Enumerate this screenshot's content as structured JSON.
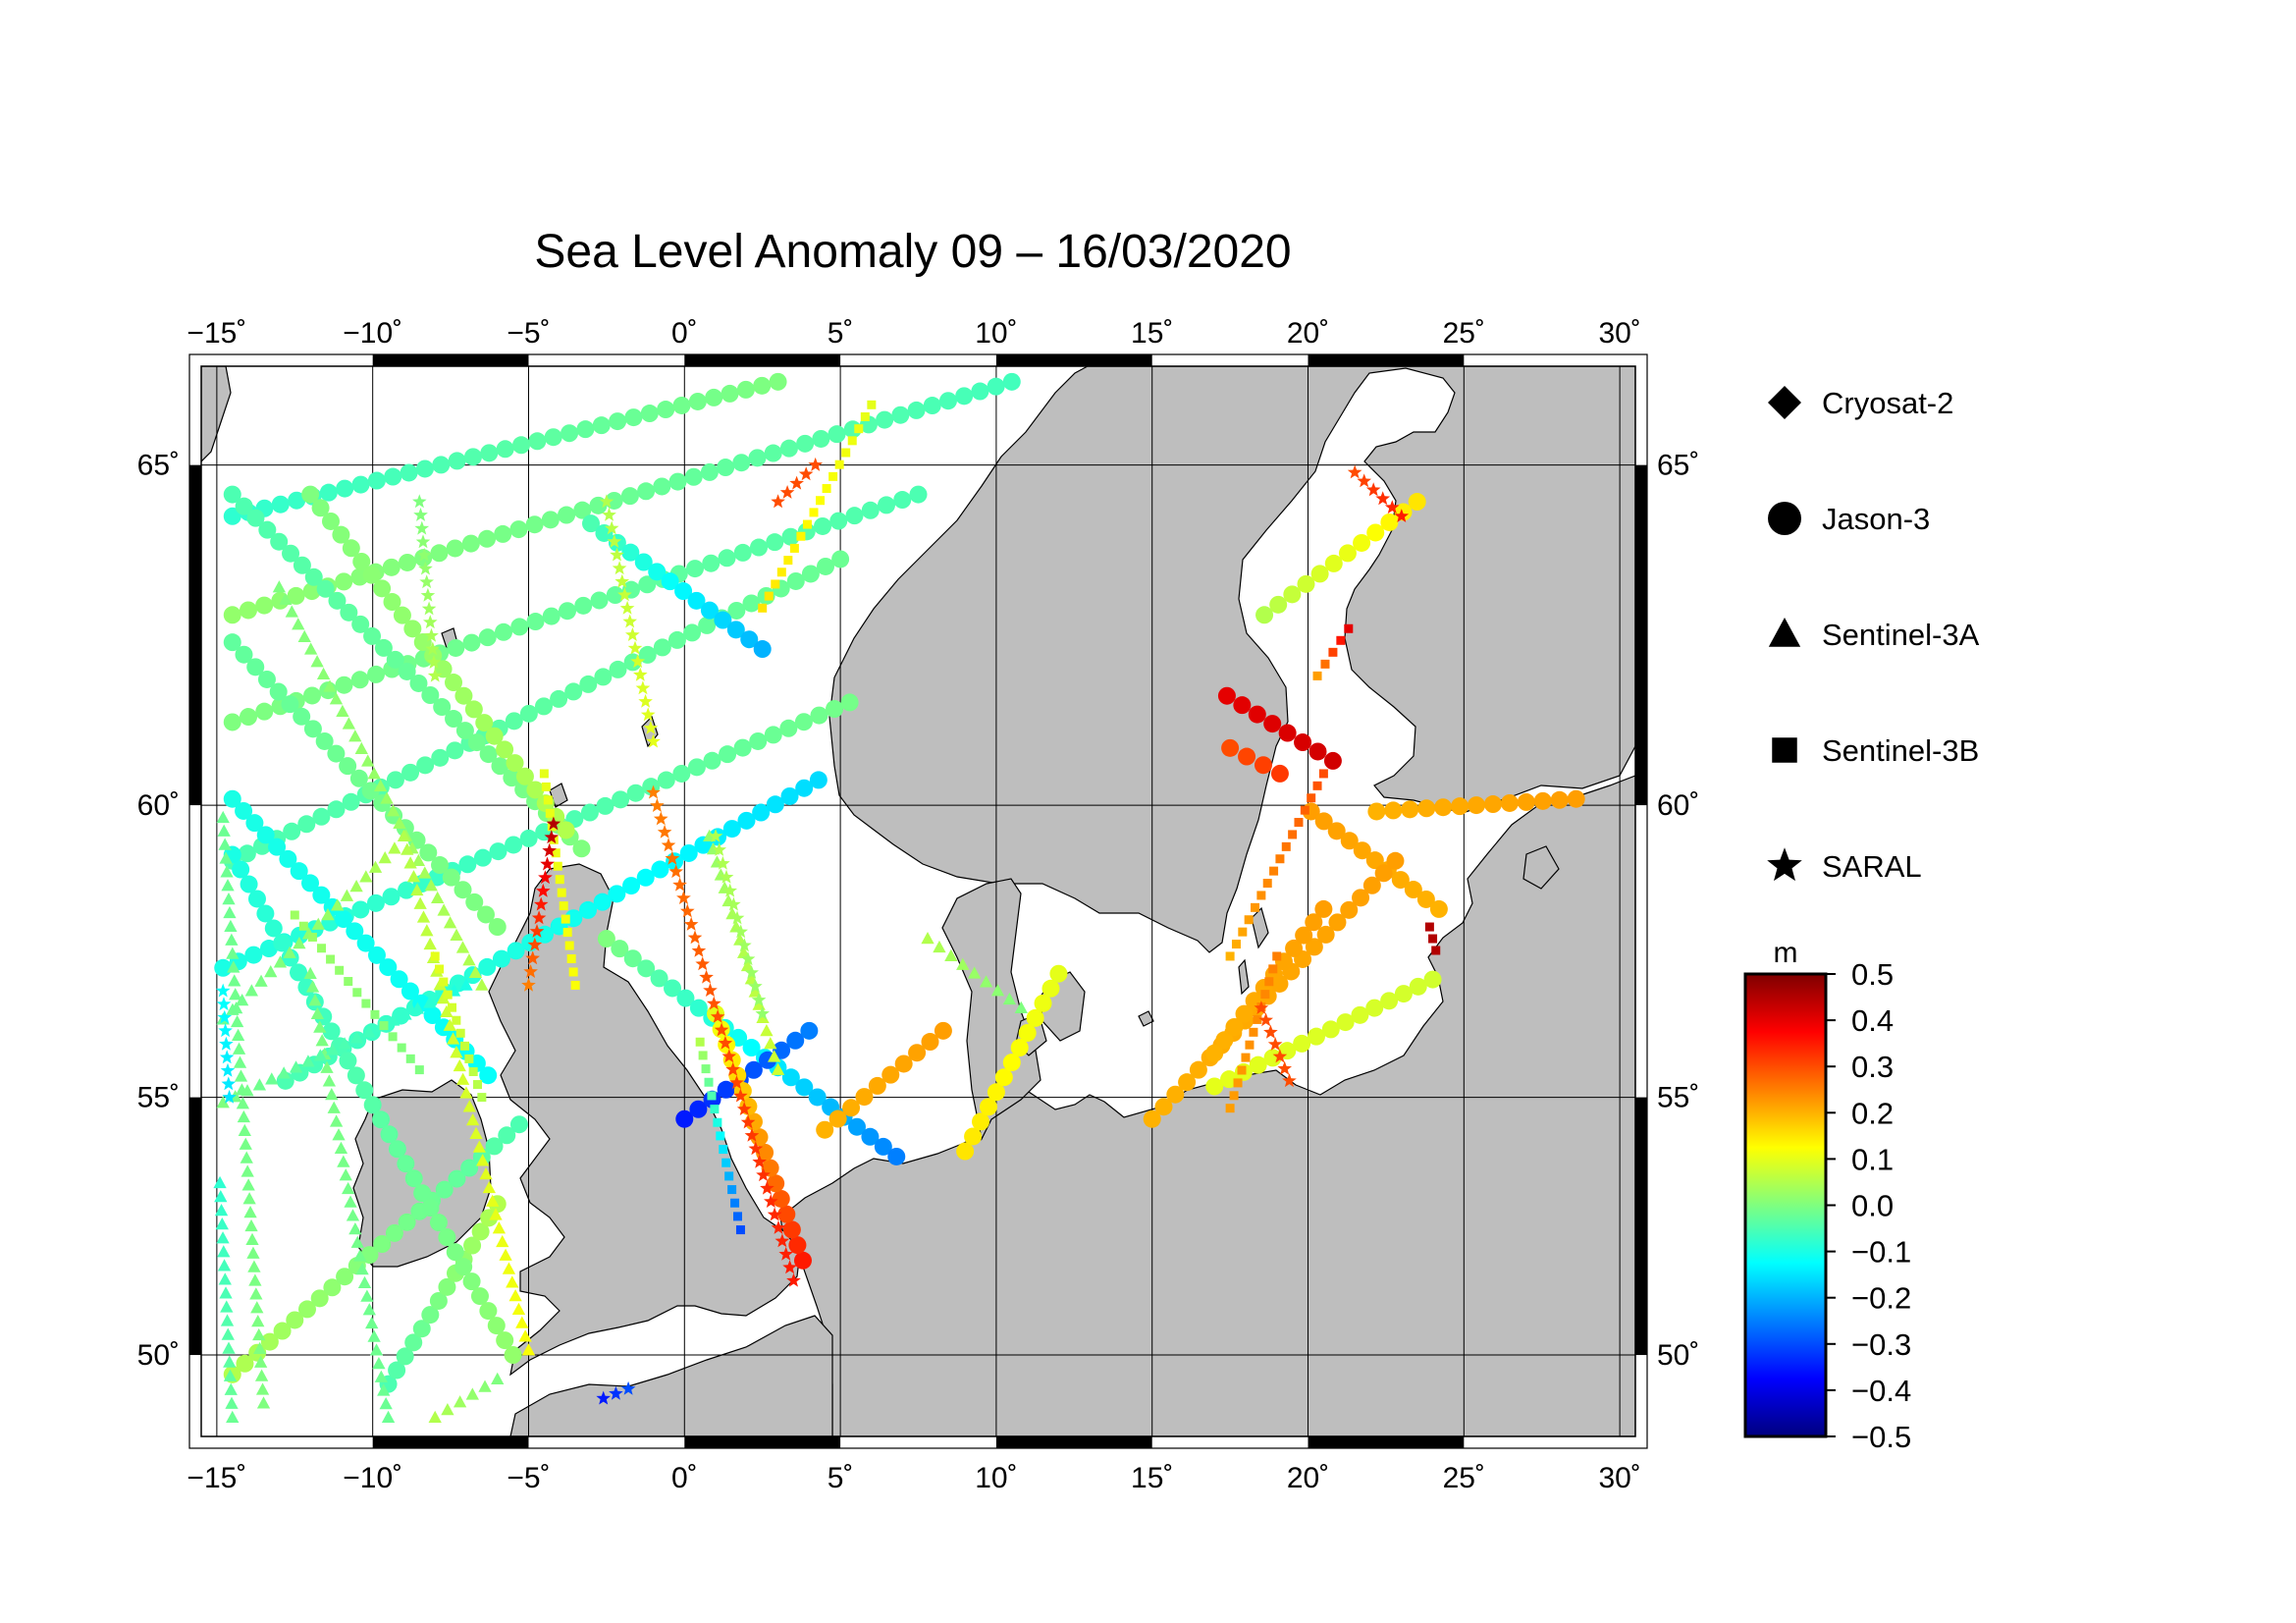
{
  "title": "Sea Level Anomaly 09 – 16/03/2020",
  "colors": {
    "land": "#bebebe",
    "sea": "#ffffff",
    "coast": "#000000",
    "grid": "#000000"
  },
  "map": {
    "lon_range": [
      -15.5,
      30.5
    ],
    "lat_range": [
      48.3,
      66.3
    ],
    "lon_ticks": [
      -15,
      -10,
      -5,
      0,
      5,
      10,
      15,
      20,
      25,
      30
    ],
    "lon_tick_labels": [
      "−15˚",
      "−10˚",
      "−5˚",
      "0˚",
      "5˚",
      "10˚",
      "15˚",
      "20˚",
      "25˚",
      "30˚"
    ],
    "lat_ticks": [
      50,
      55,
      60,
      65
    ],
    "lat_tick_labels": [
      "50˚",
      "55˚",
      "60˚",
      "65˚"
    ],
    "projection": "mercator",
    "grid": true
  },
  "legend": {
    "items": [
      {
        "label": "Cryosat-2",
        "symbol": "diamond-icon"
      },
      {
        "label": "Jason-3",
        "symbol": "circle-icon"
      },
      {
        "label": "Sentinel-3A",
        "symbol": "triangle-icon"
      },
      {
        "label": "Sentinel-3B",
        "symbol": "square-icon"
      },
      {
        "label": "SARAL",
        "symbol": "star-icon"
      }
    ]
  },
  "colorbar": {
    "unit": "m",
    "min": -0.5,
    "max": 0.5,
    "ticks": [
      0.5,
      0.4,
      0.3,
      0.2,
      0.1,
      0.0,
      -0.1,
      -0.2,
      -0.3,
      -0.4,
      -0.5
    ],
    "tick_labels": [
      "0.5",
      "0.4",
      "0.3",
      "0.2",
      "0.1",
      "0.0",
      "−0.1",
      "−0.2",
      "−0.3",
      "−0.4",
      "−0.5"
    ],
    "colormap": [
      "#00007f",
      "#0000ff",
      "#007fff",
      "#00ffff",
      "#7fff7f",
      "#ffff00",
      "#ff7f00",
      "#ff0000",
      "#7f0000"
    ]
  },
  "chart_data": {
    "type": "scatter",
    "title": "Sea Level Anomaly 09 – 16/03/2020",
    "xlabel": "",
    "ylabel": "",
    "xlim": [
      -15.5,
      30.5
    ],
    "ylim": [
      48.3,
      66.3
    ],
    "value_unit": "m",
    "value_range": [
      -0.5,
      0.5
    ],
    "tracks": [
      {
        "satellite": "Jason-3",
        "start": [
          -14.5,
          64.3
        ],
        "end": [
          3.0,
          66.1
        ],
        "values": [
          -0.08,
          0.0
        ]
      },
      {
        "satellite": "Jason-3",
        "start": [
          -14.5,
          62.9
        ],
        "end": [
          10.5,
          66.1
        ],
        "values": [
          0.02,
          -0.06
        ]
      },
      {
        "satellite": "Jason-3",
        "start": [
          -14.5,
          61.3
        ],
        "end": [
          7.5,
          64.6
        ],
        "values": [
          0.0,
          -0.05
        ]
      },
      {
        "satellite": "Jason-3",
        "start": [
          -14.5,
          59.1
        ],
        "end": [
          5.0,
          63.7
        ],
        "values": [
          -0.05,
          -0.02
        ]
      },
      {
        "satellite": "Jason-3",
        "start": [
          -14.8,
          57.3
        ],
        "end": [
          5.3,
          61.6
        ],
        "values": [
          -0.1,
          -0.01
        ]
      },
      {
        "satellite": "Jason-3",
        "start": [
          -12.8,
          55.3
        ],
        "end": [
          4.3,
          60.4
        ],
        "values": [
          -0.05,
          -0.16
        ]
      },
      {
        "satellite": "Jason-3",
        "start": [
          -9.5,
          49.4
        ],
        "end": [
          -6.0,
          53.0
        ],
        "values": [
          -0.05,
          0.05
        ]
      },
      {
        "satellite": "Jason-3",
        "start": [
          -14.5,
          64.6
        ],
        "end": [
          -3.3,
          59.3
        ],
        "values": [
          -0.05,
          0.0
        ]
      },
      {
        "satellite": "Jason-3",
        "start": [
          -14.5,
          62.5
        ],
        "end": [
          -6.0,
          58.0
        ],
        "values": [
          -0.03,
          0.0
        ]
      },
      {
        "satellite": "Jason-3",
        "start": [
          -14.5,
          60.1
        ],
        "end": [
          -6.3,
          55.4
        ],
        "values": [
          -0.1,
          -0.12
        ]
      },
      {
        "satellite": "Jason-3",
        "start": [
          -14.5,
          49.6
        ],
        "end": [
          -5.3,
          54.5
        ],
        "values": [
          0.05,
          -0.05
        ]
      },
      {
        "satellite": "Jason-3",
        "start": [
          -14.5,
          59.2
        ],
        "end": [
          -5.5,
          50.0
        ],
        "values": [
          -0.1,
          0.02
        ]
      },
      {
        "satellite": "Jason-3",
        "start": [
          -12.0,
          64.6
        ],
        "end": [
          -3.8,
          59.6
        ],
        "values": [
          0.0,
          0.05
        ]
      },
      {
        "satellite": "Jason-3",
        "start": [
          -3.0,
          64.2
        ],
        "end": [
          2.5,
          62.4
        ],
        "values": [
          -0.05,
          -0.2
        ]
      },
      {
        "satellite": "Jason-3",
        "start": [
          -2.5,
          57.8
        ],
        "end": [
          6.8,
          53.9
        ],
        "values": [
          0.0,
          -0.25
        ]
      },
      {
        "satellite": "Jason-3",
        "start": [
          0.0,
          54.6
        ],
        "end": [
          4.0,
          56.2
        ],
        "values": [
          -0.35,
          -0.25
        ]
      },
      {
        "satellite": "Jason-3",
        "start": [
          3.8,
          51.9
        ],
        "end": [
          1.0,
          56.5
        ],
        "values": [
          0.35,
          0.1
        ]
      },
      {
        "satellite": "Jason-3",
        "start": [
          17.4,
          61.7
        ],
        "end": [
          20.8,
          60.7
        ],
        "values": [
          0.4,
          0.42
        ]
      },
      {
        "satellite": "Jason-3",
        "start": [
          17.5,
          60.9
        ],
        "end": [
          19.1,
          60.5
        ],
        "values": [
          0.3,
          0.32
        ]
      },
      {
        "satellite": "Jason-3",
        "start": [
          18.6,
          62.9
        ],
        "end": [
          23.5,
          64.5
        ],
        "values": [
          0.05,
          0.15
        ]
      },
      {
        "satellite": "Jason-3",
        "start": [
          20.1,
          59.9
        ],
        "end": [
          24.2,
          58.3
        ],
        "values": [
          0.22,
          0.2
        ]
      },
      {
        "satellite": "Jason-3",
        "start": [
          15.0,
          54.6
        ],
        "end": [
          22.8,
          59.1
        ],
        "values": [
          0.2,
          0.22
        ]
      },
      {
        "satellite": "Jason-3",
        "start": [
          17.0,
          55.8
        ],
        "end": [
          20.5,
          58.3
        ],
        "values": [
          0.2,
          0.22
        ]
      },
      {
        "satellite": "Jason-3",
        "start": [
          17.0,
          55.2
        ],
        "end": [
          24.0,
          57.1
        ],
        "values": [
          0.1,
          0.08
        ]
      },
      {
        "satellite": "Jason-3",
        "start": [
          22.2,
          59.9
        ],
        "end": [
          28.6,
          60.1
        ],
        "values": [
          0.2,
          0.22
        ]
      },
      {
        "satellite": "Jason-3",
        "start": [
          9.0,
          54.0
        ],
        "end": [
          12.0,
          57.2
        ],
        "values": [
          0.15,
          0.1
        ]
      },
      {
        "satellite": "Jason-3",
        "start": [
          4.5,
          54.4
        ],
        "end": [
          8.3,
          56.2
        ],
        "values": [
          0.2,
          0.22
        ]
      },
      {
        "satellite": "Sentinel-3A",
        "start": [
          -14.8,
          59.8
        ],
        "end": [
          -13.5,
          49.0
        ],
        "values": [
          -0.02,
          0.0
        ]
      },
      {
        "satellite": "Sentinel-3A",
        "start": [
          -12.0,
          57.2
        ],
        "end": [
          -9.5,
          48.7
        ],
        "values": [
          0.0,
          -0.02
        ]
      },
      {
        "satellite": "Sentinel-3A",
        "start": [
          -14.8,
          56.4
        ],
        "end": [
          -9.3,
          59.3
        ],
        "values": [
          -0.02,
          0.05
        ]
      },
      {
        "satellite": "Sentinel-3A",
        "start": [
          -14.8,
          54.9
        ],
        "end": [
          -7.0,
          57.0
        ],
        "values": [
          0.0,
          -0.1
        ]
      },
      {
        "satellite": "Sentinel-3A",
        "start": [
          -13.0,
          63.3
        ],
        "end": [
          -6.5,
          57.0
        ],
        "values": [
          0.0,
          0.05
        ]
      },
      {
        "satellite": "Sentinel-3A",
        "start": [
          -9.0,
          59.5
        ],
        "end": [
          -5.0,
          50.1
        ],
        "values": [
          0.05,
          0.12
        ]
      },
      {
        "satellite": "Sentinel-3A",
        "start": [
          0.8,
          59.5
        ],
        "end": [
          3.0,
          55.5
        ],
        "values": [
          0.02,
          0.08
        ]
      },
      {
        "satellite": "Sentinel-3A",
        "start": [
          -6.0,
          49.5
        ],
        "end": [
          -8.0,
          48.7
        ],
        "values": [
          0.0,
          0.05
        ]
      },
      {
        "satellite": "Sentinel-3A",
        "start": [
          7.8,
          57.8
        ],
        "end": [
          10.8,
          56.6
        ],
        "values": [
          0.05,
          0.0
        ]
      },
      {
        "satellite": "Sentinel-3A",
        "start": [
          -14.9,
          53.4
        ],
        "end": [
          -14.5,
          48.7
        ],
        "values": [
          -0.08,
          -0.02
        ]
      },
      {
        "satellite": "Sentinel-3B",
        "start": [
          -12.5,
          58.2
        ],
        "end": [
          -8.5,
          55.5
        ],
        "values": [
          0.03,
          0.0
        ]
      },
      {
        "satellite": "Sentinel-3B",
        "start": [
          -8.0,
          57.5
        ],
        "end": [
          -6.5,
          55.0
        ],
        "values": [
          0.1,
          0.05
        ]
      },
      {
        "satellite": "Sentinel-3B",
        "start": [
          -4.5,
          60.5
        ],
        "end": [
          -3.5,
          57.0
        ],
        "values": [
          0.1,
          0.12
        ]
      },
      {
        "satellite": "Sentinel-3B",
        "start": [
          0.5,
          56.0
        ],
        "end": [
          1.8,
          52.5
        ],
        "values": [
          0.05,
          -0.3
        ]
      },
      {
        "satellite": "Sentinel-3B",
        "start": [
          2.5,
          63.0
        ],
        "end": [
          6.0,
          65.8
        ],
        "values": [
          0.15,
          0.1
        ]
      },
      {
        "satellite": "Sentinel-3B",
        "start": [
          17.5,
          57.5
        ],
        "end": [
          20.5,
          60.5
        ],
        "values": [
          0.2,
          0.3
        ]
      },
      {
        "satellite": "Sentinel-3B",
        "start": [
          17.5,
          54.8
        ],
        "end": [
          19.0,
          57.5
        ],
        "values": [
          0.22,
          0.25
        ]
      },
      {
        "satellite": "Sentinel-3B",
        "start": [
          20.3,
          62.0
        ],
        "end": [
          21.3,
          62.7
        ],
        "values": [
          0.22,
          0.4
        ]
      },
      {
        "satellite": "Sentinel-3B",
        "start": [
          23.9,
          58.0
        ],
        "end": [
          24.1,
          57.6
        ],
        "values": [
          0.45,
          0.45
        ]
      },
      {
        "satellite": "SARAL",
        "start": [
          -4.2,
          59.7
        ],
        "end": [
          -5.0,
          57.0
        ],
        "values": [
          0.45,
          0.25
        ]
      },
      {
        "satellite": "SARAL",
        "start": [
          -1.0,
          60.2
        ],
        "end": [
          3.5,
          51.5
        ],
        "values": [
          0.25,
          0.35
        ]
      },
      {
        "satellite": "SARAL",
        "start": [
          1.0,
          59.5
        ],
        "end": [
          2.5,
          56.5
        ],
        "values": [
          0.05,
          0.02
        ]
      },
      {
        "satellite": "SARAL",
        "start": [
          -2.5,
          64.5
        ],
        "end": [
          -1.0,
          61.0
        ],
        "values": [
          0.05,
          0.1
        ]
      },
      {
        "satellite": "SARAL",
        "start": [
          -8.5,
          64.5
        ],
        "end": [
          -8.0,
          62.0
        ],
        "values": [
          0.0,
          0.05
        ]
      },
      {
        "satellite": "SARAL",
        "start": [
          -14.8,
          56.9
        ],
        "end": [
          -14.6,
          55.0
        ],
        "values": [
          -0.12,
          -0.15
        ]
      },
      {
        "satellite": "SARAL",
        "start": [
          21.5,
          64.9
        ],
        "end": [
          23.0,
          64.3
        ],
        "values": [
          0.3,
          0.35
        ]
      },
      {
        "satellite": "SARAL",
        "start": [
          18.5,
          56.6
        ],
        "end": [
          19.4,
          55.3
        ],
        "values": [
          0.3,
          0.3
        ]
      },
      {
        "satellite": "SARAL",
        "start": [
          4.2,
          65.0
        ],
        "end": [
          3.0,
          64.5
        ],
        "values": [
          0.3,
          0.3
        ]
      },
      {
        "satellite": "SARAL",
        "start": [
          -2.6,
          49.1
        ],
        "end": [
          -1.8,
          49.3
        ],
        "values": [
          -0.35,
          -0.3
        ]
      }
    ]
  }
}
